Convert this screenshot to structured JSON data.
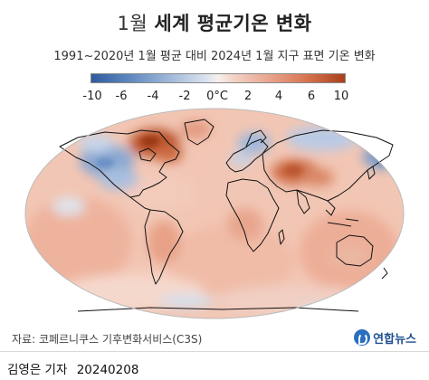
{
  "header": {
    "title_month": "1월",
    "title_main": "세계 평균기온 변화",
    "subtitle": "1991~2020년 1월 평균 대비 2024년 1월 지구 표면 기온 변화"
  },
  "legend": {
    "ticks": [
      "-10",
      "-6",
      "-4",
      "-2",
      "0°C",
      "2",
      "4",
      "6",
      "10"
    ],
    "scale_min": -10,
    "scale_max": 10,
    "colors": {
      "cold_extreme": "#2f5b9e",
      "cold": "#9cb6d8",
      "neutral": "#f6f0ec",
      "warm": "#e9a58f",
      "warm_extreme": "#a9401a"
    }
  },
  "map": {
    "projection": "robinson-like world map",
    "highlights": [
      {
        "region": "northeastern Canada",
        "anomaly": "warm",
        "level": 0.9
      },
      {
        "region": "western Canada & USA",
        "anomaly": "cold",
        "level": -0.7
      },
      {
        "region": "northern Europe",
        "anomaly": "cold",
        "level": -0.5
      },
      {
        "region": "Siberia",
        "anomaly": "cold",
        "level": -0.6
      },
      {
        "region": "Central Asia",
        "anomaly": "warm",
        "level": 0.7
      },
      {
        "region": "oceans (global)",
        "anomaly": "warm",
        "level": 0.35
      }
    ]
  },
  "footer": {
    "source": "자료: 코페르니쿠스 기후변화서비스(C3S)",
    "logo": "연합뉴스",
    "author": "김영은 기자",
    "date": "20240208"
  }
}
